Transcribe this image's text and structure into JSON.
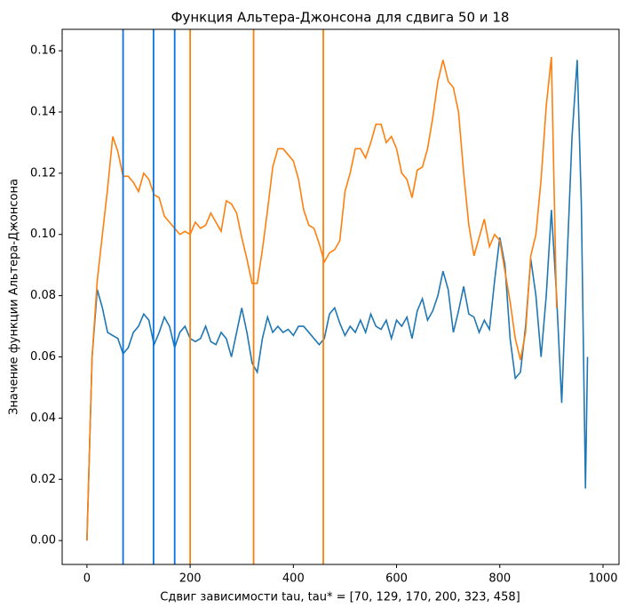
{
  "chart_data": {
    "type": "line",
    "title": "Функция Альтера-Джонсона для сдвига 50 и 18",
    "xlabel": "Сдвиг зависимости tau, tau* = [70, 129, 170, 200, 323, 458]",
    "ylabel": "Значение функции Альтера-Джонсона",
    "x": [
      0,
      10,
      20,
      30,
      40,
      50,
      60,
      70,
      80,
      90,
      100,
      110,
      120,
      130,
      140,
      150,
      160,
      170,
      180,
      190,
      200,
      210,
      220,
      230,
      240,
      250,
      260,
      270,
      280,
      290,
      300,
      310,
      320,
      330,
      340,
      350,
      360,
      370,
      380,
      390,
      400,
      410,
      420,
      430,
      440,
      450,
      460,
      470,
      480,
      490,
      500,
      510,
      520,
      530,
      540,
      550,
      560,
      570,
      580,
      590,
      600,
      610,
      620,
      630,
      640,
      650,
      660,
      670,
      680,
      690,
      700,
      710,
      720,
      730,
      740,
      750,
      760,
      770,
      780,
      790,
      800,
      810,
      820,
      830,
      840,
      850,
      860,
      870,
      880,
      890,
      900,
      910,
      920,
      930,
      940,
      950,
      958,
      966,
      970
    ],
    "series": [
      {
        "color": "#1f77b4",
        "values": [
          0.0,
          0.06,
          0.082,
          0.076,
          0.068,
          0.067,
          0.066,
          0.061,
          0.063,
          0.068,
          0.07,
          0.074,
          0.072,
          0.064,
          0.068,
          0.073,
          0.07,
          0.063,
          0.068,
          0.07,
          0.066,
          0.065,
          0.066,
          0.07,
          0.065,
          0.064,
          0.068,
          0.066,
          0.06,
          0.068,
          0.076,
          0.068,
          0.058,
          0.055,
          0.066,
          0.073,
          0.068,
          0.07,
          0.068,
          0.069,
          0.067,
          0.07,
          0.07,
          0.068,
          0.066,
          0.064,
          0.066,
          0.074,
          0.076,
          0.071,
          0.067,
          0.07,
          0.068,
          0.072,
          0.068,
          0.074,
          0.07,
          0.069,
          0.072,
          0.066,
          0.072,
          0.07,
          0.073,
          0.066,
          0.075,
          0.079,
          0.072,
          0.075,
          0.08,
          0.088,
          0.082,
          0.068,
          0.075,
          0.083,
          0.074,
          0.073,
          0.068,
          0.072,
          0.069,
          0.085,
          0.099,
          0.09,
          0.066,
          0.053,
          0.055,
          0.07,
          0.092,
          0.08,
          0.06,
          0.08,
          0.108,
          0.08,
          0.045,
          0.09,
          0.132,
          0.157,
          0.11,
          0.017,
          0.06
        ]
      },
      {
        "color": "#ff7f0e",
        "values": [
          0.0,
          0.06,
          0.085,
          0.1,
          0.115,
          0.132,
          0.127,
          0.119,
          0.119,
          0.117,
          0.114,
          0.12,
          0.118,
          0.113,
          0.112,
          0.106,
          0.104,
          0.102,
          0.1,
          0.101,
          0.1,
          0.104,
          0.102,
          0.103,
          0.107,
          0.104,
          0.101,
          0.111,
          0.11,
          0.107,
          0.099,
          0.092,
          0.084,
          0.084,
          0.095,
          0.108,
          0.122,
          0.128,
          0.128,
          0.126,
          0.124,
          0.118,
          0.108,
          0.103,
          0.102,
          0.097,
          0.091,
          0.094,
          0.095,
          0.098,
          0.114,
          0.12,
          0.128,
          0.128,
          0.125,
          0.13,
          0.136,
          0.136,
          0.13,
          0.132,
          0.128,
          0.12,
          0.118,
          0.112,
          0.121,
          0.122,
          0.128,
          0.138,
          0.15,
          0.157,
          0.15,
          0.148,
          0.14,
          0.12,
          0.103,
          0.093,
          0.099,
          0.105,
          0.096,
          0.1,
          0.098,
          0.088,
          0.078,
          0.066,
          0.059,
          0.068,
          0.093,
          0.1,
          0.118,
          0.142,
          0.158,
          0.076,
          null,
          null,
          null,
          null,
          null,
          null,
          null
        ]
      }
    ],
    "vlines": [
      {
        "x": 70,
        "color": "#0a72e0"
      },
      {
        "x": 129,
        "color": "#0a72e0"
      },
      {
        "x": 170,
        "color": "#0a72e0"
      },
      {
        "x": 200,
        "color": "#ff7f0e"
      },
      {
        "x": 323,
        "color": "#ff7f0e"
      },
      {
        "x": 458,
        "color": "#ff7f0e"
      }
    ],
    "xlim": [
      -48,
      1031
    ],
    "ylim": [
      -0.0078,
      0.167
    ],
    "xticks": [
      0,
      200,
      400,
      600,
      800,
      1000
    ],
    "yticks": [
      {
        "value": 0,
        "label": "0.00"
      },
      0.02,
      0.04,
      0.06,
      0.08,
      {
        "value": 0.1,
        "label": "0.10"
      },
      0.12,
      0.14,
      0.16
    ]
  }
}
